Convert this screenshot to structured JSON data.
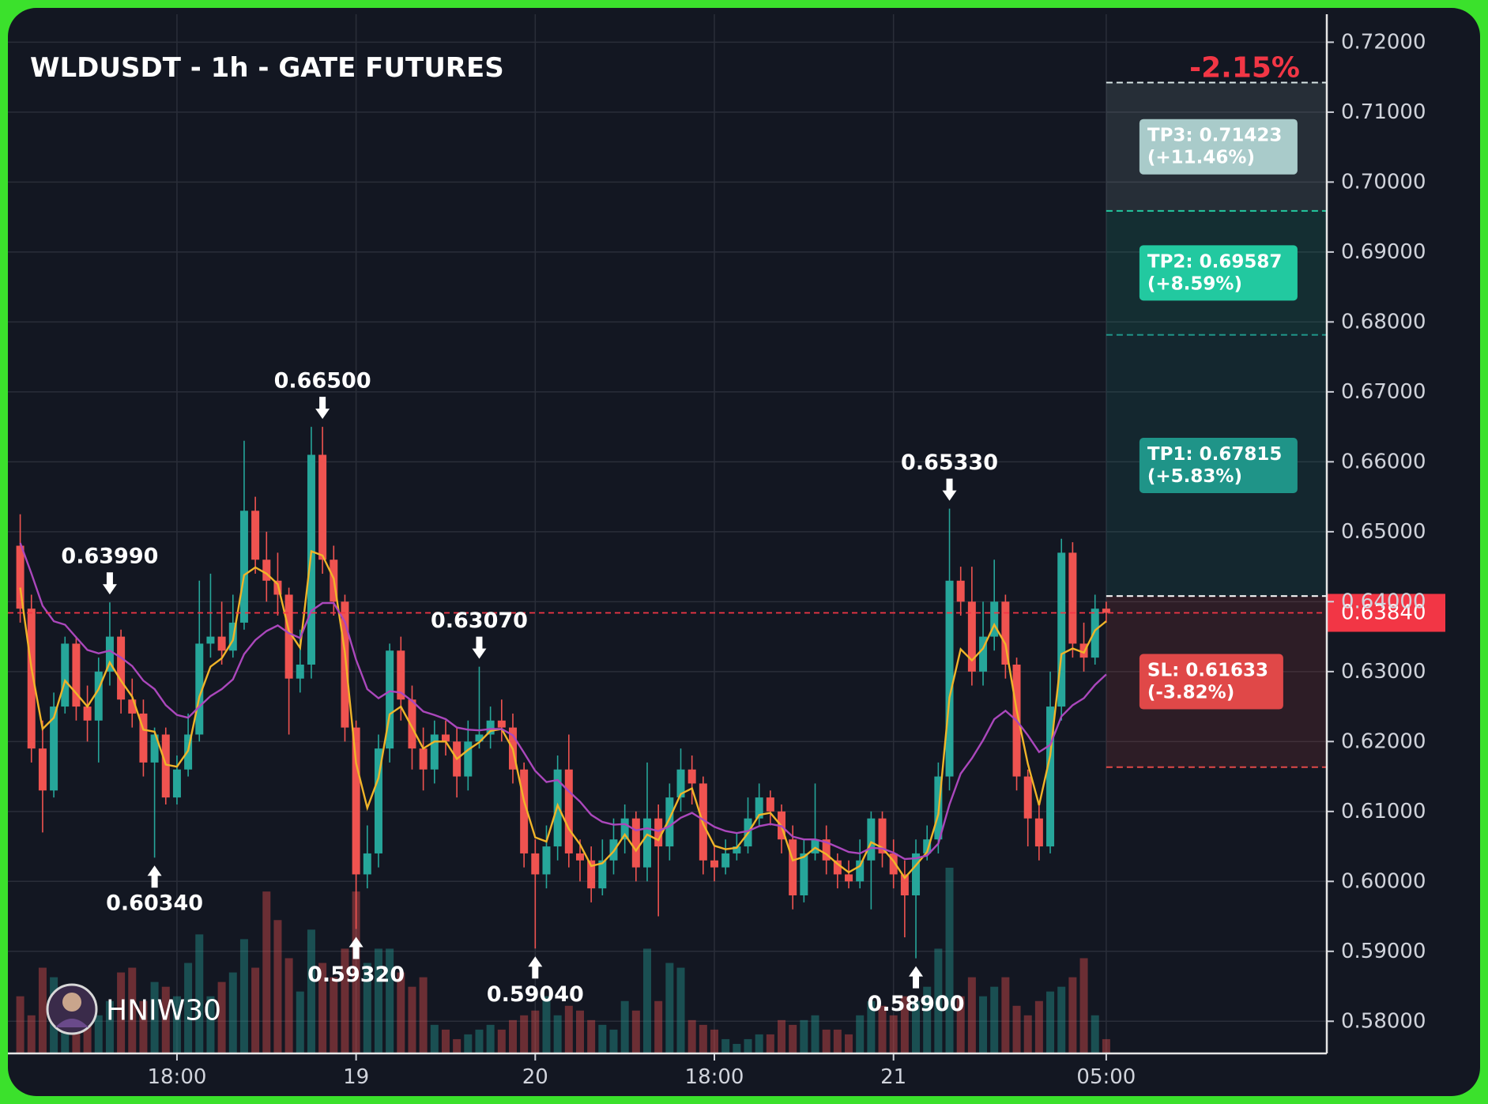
{
  "chart_data": {
    "type": "candlestick",
    "title": "WLDUSDT - 1h - GATE FUTURES",
    "change": "-2.15%",
    "watermark": "HNIW30",
    "xlim": [
      -1.1,
      116.7
    ],
    "xticks": [
      {
        "value": 14,
        "label": "18:00"
      },
      {
        "value": 30,
        "label": "19"
      },
      {
        "value": 46,
        "label": "20"
      },
      {
        "value": 62,
        "label": "18:00"
      },
      {
        "value": 78,
        "label": "21"
      },
      {
        "value": 97,
        "label": "05:00"
      }
    ],
    "ylim": [
      0.5754,
      0.724
    ],
    "yticks": [
      {
        "value": 0.58,
        "label": "0.58000"
      },
      {
        "value": 0.59,
        "label": "0.59000"
      },
      {
        "value": 0.6,
        "label": "0.60000"
      },
      {
        "value": 0.61,
        "label": "0.61000"
      },
      {
        "value": 0.62,
        "label": "0.62000"
      },
      {
        "value": 0.63,
        "label": "0.63000"
      },
      {
        "value": 0.64,
        "label": "0.64000"
      },
      {
        "value": 0.65,
        "label": "0.65000"
      },
      {
        "value": 0.66,
        "label": "0.66000"
      },
      {
        "value": 0.67,
        "label": "0.67000"
      },
      {
        "value": 0.68,
        "label": "0.68000"
      },
      {
        "value": 0.69,
        "label": "0.69000"
      },
      {
        "value": 0.7,
        "label": "0.70000"
      },
      {
        "value": 0.71,
        "label": "0.71000"
      },
      {
        "value": 0.72,
        "label": "0.72000"
      }
    ],
    "grid": true,
    "up_color": "#26a69a",
    "down_color": "#ef5350",
    "open": [
      0.648,
      0.639,
      0.619,
      0.613,
      0.625,
      0.634,
      0.625,
      0.623,
      0.63,
      0.635,
      0.626,
      0.624,
      0.617,
      0.621,
      0.612,
      0.616,
      0.621,
      0.634,
      0.635,
      0.633,
      0.637,
      0.653,
      0.646,
      0.643,
      0.641,
      0.629,
      0.631,
      0.661,
      0.646,
      0.64,
      0.622,
      0.601,
      0.604,
      0.619,
      0.633,
      0.626,
      0.619,
      0.616,
      0.621,
      0.62,
      0.615,
      0.62,
      0.621,
      0.623,
      0.622,
      0.616,
      0.604,
      0.601,
      0.605,
      0.616,
      0.604,
      0.603,
      0.599,
      0.603,
      0.606,
      0.609,
      0.602,
      0.609,
      0.605,
      0.612,
      0.616,
      0.614,
      0.603,
      0.602,
      0.604,
      0.605,
      0.609,
      0.612,
      0.61,
      0.606,
      0.598,
      0.604,
      0.606,
      0.603,
      0.601,
      0.6,
      0.603,
      0.609,
      0.604,
      0.601,
      0.598,
      0.604,
      0.606,
      0.615,
      0.643,
      0.64,
      0.63,
      0.635,
      0.64,
      0.631,
      0.615,
      0.609,
      0.605,
      0.625,
      0.647,
      0.634,
      0.632,
      0.639
    ],
    "high": [
      0.6525,
      0.641,
      0.623,
      0.627,
      0.635,
      0.635,
      0.628,
      0.632,
      0.6399,
      0.636,
      0.629,
      0.626,
      0.622,
      0.622,
      0.618,
      0.624,
      0.643,
      0.644,
      0.64,
      0.641,
      0.663,
      0.655,
      0.65,
      0.647,
      0.642,
      0.636,
      0.665,
      0.665,
      0.648,
      0.641,
      0.623,
      0.608,
      0.621,
      0.634,
      0.635,
      0.628,
      0.622,
      0.623,
      0.623,
      0.622,
      0.623,
      0.6307,
      0.625,
      0.626,
      0.624,
      0.617,
      0.606,
      0.608,
      0.618,
      0.621,
      0.606,
      0.605,
      0.606,
      0.609,
      0.611,
      0.61,
      0.617,
      0.611,
      0.614,
      0.619,
      0.618,
      0.615,
      0.605,
      0.606,
      0.607,
      0.612,
      0.614,
      0.613,
      0.611,
      0.608,
      0.606,
      0.614,
      0.608,
      0.604,
      0.603,
      0.606,
      0.61,
      0.61,
      0.606,
      0.603,
      0.606,
      0.608,
      0.617,
      0.6533,
      0.645,
      0.645,
      0.64,
      0.646,
      0.641,
      0.632,
      0.616,
      0.611,
      0.63,
      0.649,
      0.6485,
      0.637,
      0.641,
      0.64
    ],
    "low": [
      0.637,
      0.617,
      0.607,
      0.612,
      0.624,
      0.623,
      0.62,
      0.617,
      0.628,
      0.624,
      0.622,
      0.615,
      0.6034,
      0.611,
      0.611,
      0.615,
      0.62,
      0.632,
      0.631,
      0.632,
      0.636,
      0.644,
      0.64,
      0.638,
      0.621,
      0.627,
      0.629,
      0.644,
      0.638,
      0.62,
      0.5932,
      0.599,
      0.602,
      0.617,
      0.623,
      0.616,
      0.613,
      0.614,
      0.618,
      0.612,
      0.613,
      0.619,
      0.619,
      0.62,
      0.614,
      0.602,
      0.5904,
      0.599,
      0.603,
      0.602,
      0.6,
      0.597,
      0.598,
      0.601,
      0.604,
      0.6,
      0.6,
      0.595,
      0.603,
      0.61,
      0.611,
      0.601,
      0.6,
      0.601,
      0.603,
      0.604,
      0.608,
      0.608,
      0.604,
      0.596,
      0.597,
      0.603,
      0.601,
      0.599,
      0.599,
      0.599,
      0.596,
      0.602,
      0.599,
      0.592,
      0.589,
      0.603,
      0.604,
      0.613,
      0.638,
      0.628,
      0.628,
      0.633,
      0.629,
      0.613,
      0.605,
      0.603,
      0.604,
      0.623,
      0.632,
      0.63,
      0.631,
      0.637
    ],
    "close": [
      0.639,
      0.619,
      0.613,
      0.625,
      0.634,
      0.625,
      0.623,
      0.63,
      0.635,
      0.626,
      0.624,
      0.617,
      0.621,
      0.612,
      0.616,
      0.621,
      0.634,
      0.635,
      0.633,
      0.637,
      0.653,
      0.646,
      0.643,
      0.641,
      0.629,
      0.631,
      0.661,
      0.646,
      0.64,
      0.622,
      0.601,
      0.604,
      0.619,
      0.633,
      0.626,
      0.619,
      0.616,
      0.621,
      0.62,
      0.615,
      0.62,
      0.621,
      0.623,
      0.622,
      0.616,
      0.604,
      0.601,
      0.605,
      0.616,
      0.604,
      0.603,
      0.599,
      0.603,
      0.606,
      0.609,
      0.602,
      0.609,
      0.605,
      0.612,
      0.616,
      0.614,
      0.603,
      0.602,
      0.604,
      0.605,
      0.609,
      0.612,
      0.61,
      0.606,
      0.598,
      0.604,
      0.606,
      0.603,
      0.601,
      0.6,
      0.603,
      0.609,
      0.604,
      0.601,
      0.598,
      0.604,
      0.606,
      0.615,
      0.643,
      0.64,
      0.63,
      0.635,
      0.64,
      0.631,
      0.615,
      0.609,
      0.605,
      0.625,
      0.647,
      0.634,
      0.632,
      0.639,
      0.6384
    ],
    "volume": [
      60,
      40,
      90,
      80,
      65,
      35,
      45,
      40,
      55,
      85,
      90,
      55,
      75,
      70,
      60,
      95,
      125,
      60,
      75,
      85,
      120,
      90,
      170,
      140,
      100,
      65,
      130,
      95,
      80,
      110,
      170,
      95,
      110,
      110,
      85,
      70,
      80,
      30,
      25,
      15,
      20,
      25,
      30,
      25,
      35,
      40,
      45,
      60,
      40,
      50,
      45,
      35,
      30,
      25,
      55,
      45,
      110,
      55,
      95,
      90,
      35,
      30,
      25,
      15,
      10,
      15,
      20,
      20,
      35,
      30,
      35,
      40,
      25,
      25,
      20,
      40,
      55,
      50,
      40,
      60,
      55,
      70,
      110,
      195,
      60,
      80,
      60,
      70,
      80,
      50,
      40,
      55,
      65,
      70,
      80,
      100,
      40,
      15
    ],
    "series": [
      {
        "color": "#f0b429",
        "values": [
          0.642,
          0.6305,
          0.6218,
          0.6234,
          0.6287,
          0.6269,
          0.625,
          0.6275,
          0.6313,
          0.6287,
          0.6264,
          0.6217,
          0.6214,
          0.6167,
          0.6164,
          0.6187,
          0.6264,
          0.6307,
          0.6319,
          0.6345,
          0.6438,
          0.6449,
          0.644,
          0.6425,
          0.6358,
          0.6334,
          0.6472,
          0.6466,
          0.6433,
          0.6327,
          0.6169,
          0.6105,
          0.6148,
          0.6239,
          0.625,
          0.622,
          0.619,
          0.62,
          0.62,
          0.6175,
          0.6188,
          0.6199,
          0.6215,
          0.6218,
          0.6189,
          0.6115,
          0.6063,
          0.6057,
          0.6109,
          0.6075,
          0.6053,
          0.6022,
          0.6026,
          0.6043,
          0.6067,
          0.6044,
          0.6067,
          0.6059,
          0.609,
          0.6125,
          0.6133,
          0.6082,
          0.6051,
          0.6046,
          0.6048,
          0.6069,
          0.6095,
          0.6098,
          0.6079,
          0.603,
          0.6035,
          0.6048,
          0.6039,
          0.6025,
          0.6013,
          0.6022,
          0.6056,
          0.6048,
          0.6029,
          0.6005,
          0.6023,
          0.6042,
          0.6096,
          0.6263,
          0.6332,
          0.6316,
          0.6333,
          0.6367,
          0.6339,
          0.6245,
          0.6168,
          0.6109,
          0.618,
          0.6325,
          0.6333,
          0.6327,
          0.6359,
          0.6372
        ]
      },
      {
        "color": "#ab47bc",
        "values": [
          0.6484,
          0.644,
          0.6394,
          0.6372,
          0.6367,
          0.6349,
          0.6331,
          0.6326,
          0.633,
          0.632,
          0.6308,
          0.6287,
          0.6275,
          0.6252,
          0.6238,
          0.6234,
          0.625,
          0.6265,
          0.6275,
          0.6289,
          0.6325,
          0.6345,
          0.6358,
          0.6366,
          0.6355,
          0.6348,
          0.6387,
          0.6398,
          0.6398,
          0.6371,
          0.6317,
          0.6275,
          0.6262,
          0.6272,
          0.627,
          0.6258,
          0.6243,
          0.6238,
          0.6232,
          0.622,
          0.6217,
          0.6216,
          0.6218,
          0.6218,
          0.6209,
          0.6184,
          0.6158,
          0.6142,
          0.6145,
          0.6129,
          0.6114,
          0.6095,
          0.6085,
          0.6081,
          0.6082,
          0.6073,
          0.6076,
          0.6072,
          0.6079,
          0.6091,
          0.6098,
          0.6088,
          0.6078,
          0.6072,
          0.6069,
          0.6072,
          0.6079,
          0.6082,
          0.6079,
          0.6064,
          0.606,
          0.606,
          0.6056,
          0.6049,
          0.6042,
          0.604,
          0.6048,
          0.6047,
          0.6041,
          0.6032,
          0.6033,
          0.6037,
          0.6054,
          0.611,
          0.6154,
          0.6176,
          0.6202,
          0.6232,
          0.6244,
          0.623,
          0.6209,
          0.6185,
          0.6195,
          0.6236,
          0.6252,
          0.6262,
          0.6281,
          0.6296
        ]
      }
    ],
    "annotations": [
      {
        "x": 8,
        "value": 0.6399,
        "label": "0.63990",
        "position": "above"
      },
      {
        "x": 12,
        "value": 0.6034,
        "label": "0.60340",
        "position": "below"
      },
      {
        "x": 27,
        "value": 0.665,
        "label": "0.66500",
        "position": "above"
      },
      {
        "x": 30,
        "value": 0.5932,
        "label": "0.59320",
        "position": "below"
      },
      {
        "x": 41,
        "value": 0.6307,
        "label": "0.63070",
        "position": "above"
      },
      {
        "x": 46,
        "value": 0.5904,
        "label": "0.59040",
        "position": "below"
      },
      {
        "x": 83,
        "value": 0.6533,
        "label": "0.65330",
        "position": "above"
      },
      {
        "x": 80,
        "value": 0.589,
        "label": "0.58900",
        "position": "below"
      }
    ],
    "last_price": {
      "value": 0.6384,
      "label": "0.63840",
      "color": "#f23645"
    },
    "trade": {
      "start": 97,
      "entry": 0.6408,
      "targets": [
        {
          "value": 0.71423,
          "label": "TP3: 0.71423",
          "pct": "(+11.46%)",
          "color": "#a9cbca"
        },
        {
          "value": 0.69587,
          "label": "TP2: 0.69587",
          "pct": "(+8.59%)",
          "color": "#22c9a0"
        },
        {
          "value": 0.67815,
          "label": "TP1: 0.67815",
          "pct": "(+5.83%)",
          "color": "#1f9488"
        }
      ],
      "stop": {
        "value": 0.61633,
        "label": "SL: 0.61633",
        "pct": "(-3.82%)",
        "color": "#e04848"
      }
    }
  }
}
